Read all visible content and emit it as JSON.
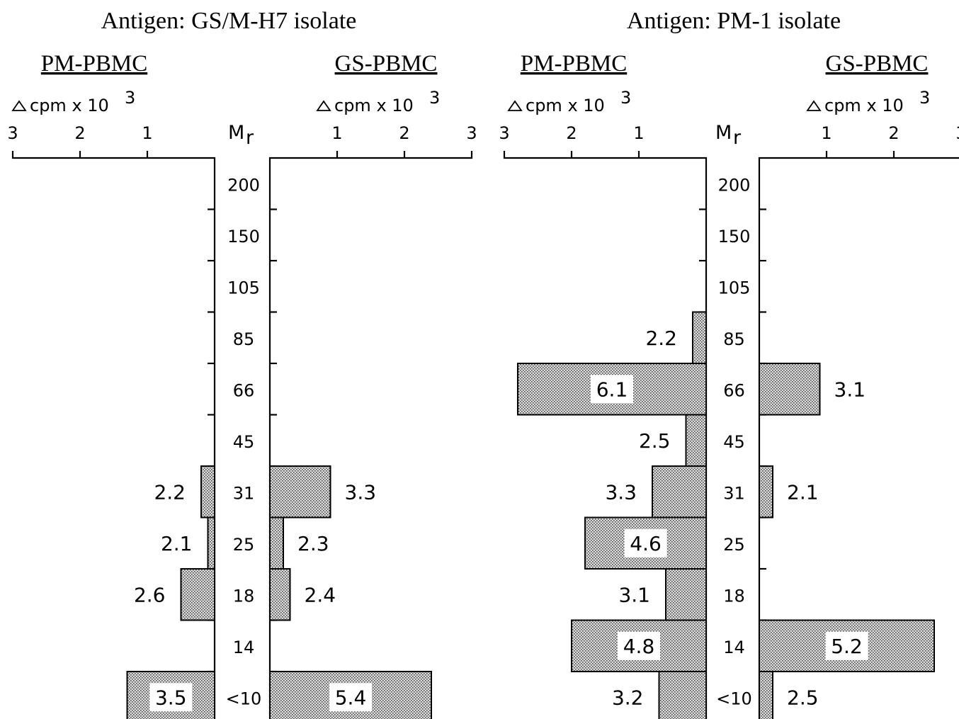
{
  "chart_data": {
    "type": "bar",
    "orientation": "horizontal-mirrored",
    "mr_label": "Mr",
    "unit_label": "cpm x 10",
    "unit_exponent": "3",
    "axis_ticks": [
      "1",
      "2",
      "3"
    ],
    "categories": [
      "200",
      "150",
      "105",
      "85",
      "66",
      "45",
      "31",
      "25",
      "18",
      "14",
      "<10"
    ],
    "xlim": [
      0,
      3
    ],
    "panels": [
      {
        "title": "Antigen: GS/M-H7 isolate",
        "series": [
          {
            "name": "PM-PBMC",
            "values": [
              null,
              null,
              null,
              null,
              null,
              null,
              0.2,
              0.1,
              0.5,
              null,
              1.3
            ],
            "labels": [
              null,
              null,
              null,
              null,
              null,
              null,
              "2.2",
              "2.1",
              "2.6",
              null,
              "3.5"
            ]
          },
          {
            "name": "GS-PBMC",
            "values": [
              null,
              null,
              null,
              null,
              null,
              null,
              0.9,
              0.2,
              0.3,
              null,
              2.4
            ],
            "labels": [
              null,
              null,
              null,
              null,
              null,
              null,
              "3.3",
              "2.3",
              "2.4",
              null,
              "5.4"
            ]
          }
        ]
      },
      {
        "title": "Antigen: PM-1 isolate",
        "series": [
          {
            "name": "PM-PBMC",
            "values": [
              null,
              null,
              null,
              0.2,
              2.8,
              0.3,
              0.8,
              1.8,
              0.6,
              2.0,
              0.7
            ],
            "labels": [
              null,
              null,
              null,
              "2.2",
              "6.1",
              "2.5",
              "3.3",
              "4.6",
              "3.1",
              "4.8",
              "3.2"
            ]
          },
          {
            "name": "GS-PBMC",
            "values": [
              null,
              null,
              null,
              null,
              0.9,
              null,
              0.2,
              null,
              null,
              2.6,
              0.2
            ],
            "labels": [
              null,
              null,
              null,
              null,
              "3.1",
              null,
              "2.1",
              null,
              null,
              "5.2",
              "2.5"
            ]
          }
        ]
      }
    ]
  }
}
